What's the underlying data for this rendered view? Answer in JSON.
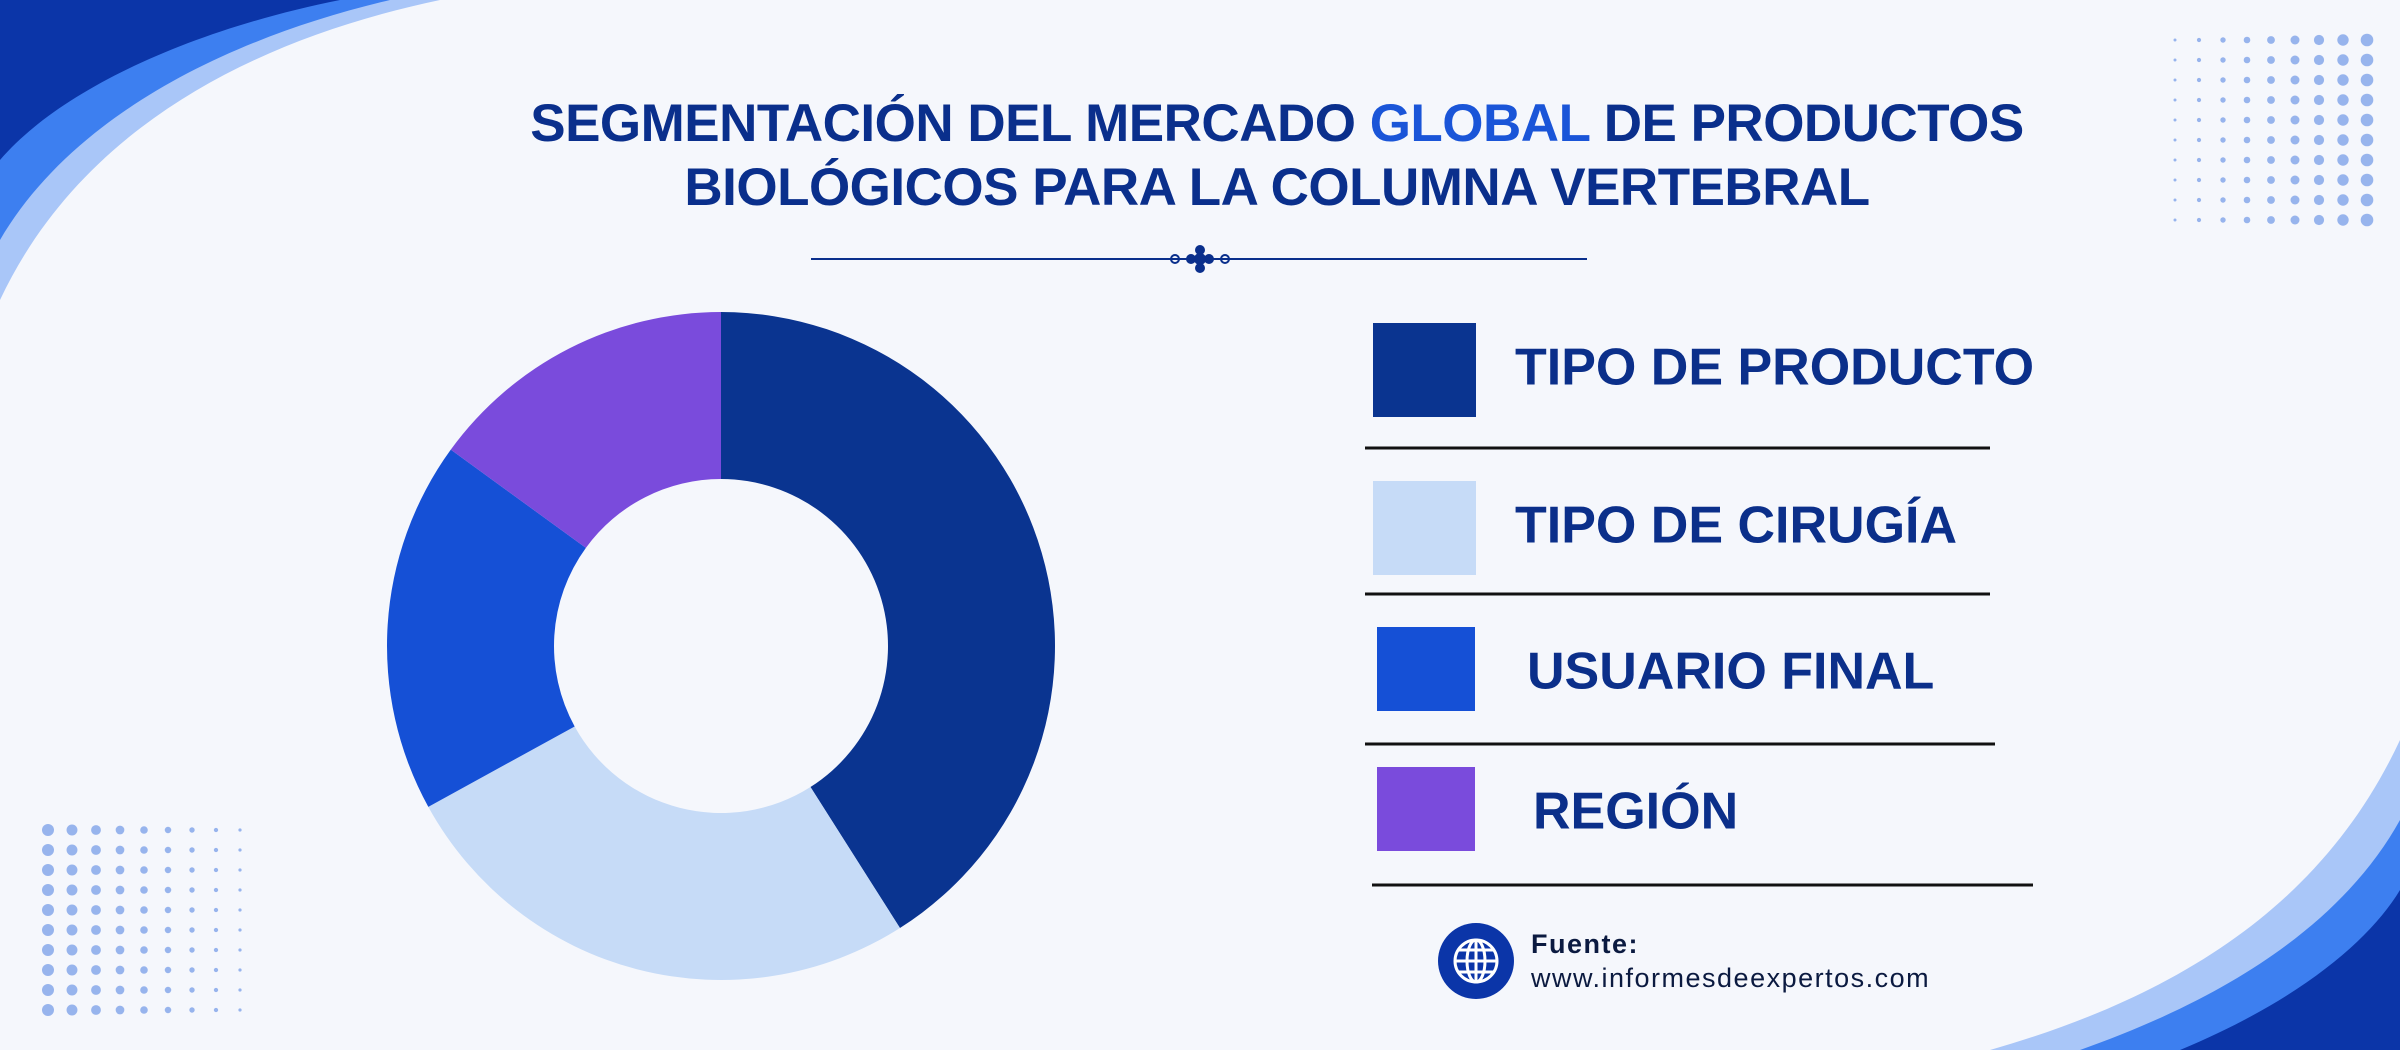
{
  "chart_data": {
    "type": "donut",
    "title_lines": [
      [
        "SEGMENTACIÓN DEL MERCADO",
        "GLOBAL",
        "DE PRODUCTOS"
      ],
      [
        "BIOLÓGICOS PARA LA COLUMNA VERTEBRAL"
      ]
    ],
    "categories": [
      "TIPO DE PRODUCTO",
      "TIPO DE CIRUGÍA",
      "USUARIO FINAL",
      "REGIÓN"
    ],
    "values": [
      41,
      26,
      18,
      15
    ],
    "colors": [
      "#0a3490",
      "#c6dbf7",
      "#1550d6",
      "#7a4bdc"
    ],
    "source_label": "Fuente:",
    "source_url": "www.informesdeexpertos.com"
  }
}
